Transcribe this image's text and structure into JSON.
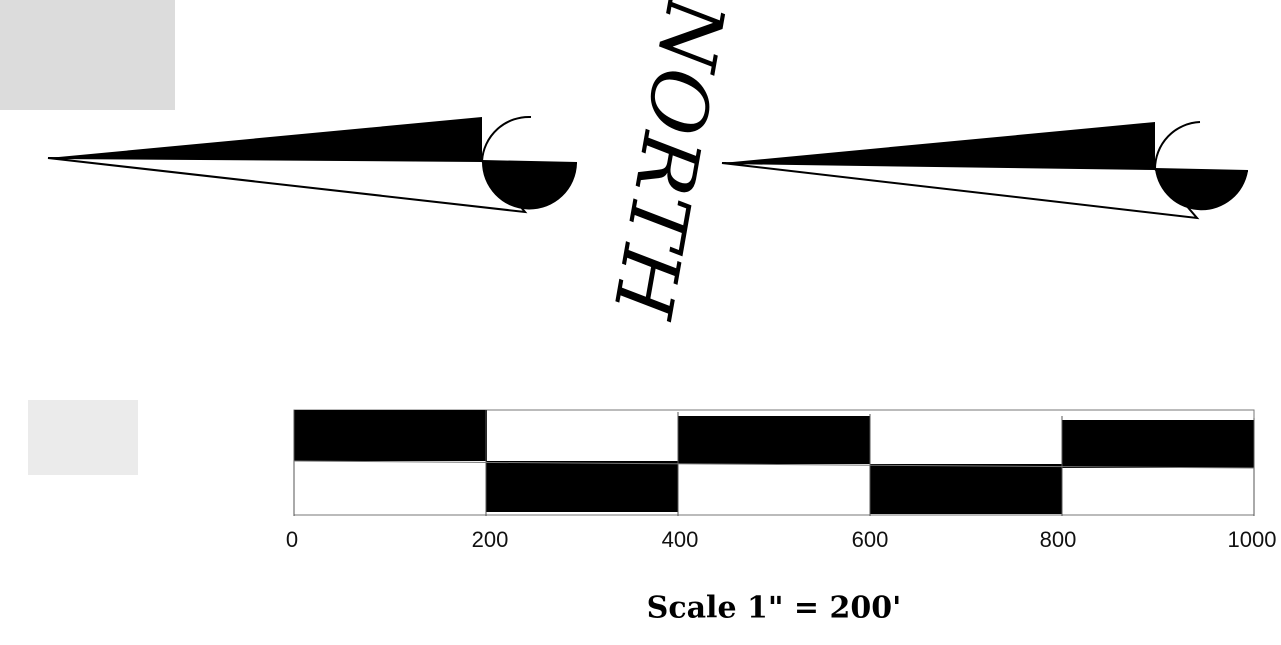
{
  "north_arrow": {
    "label": "NORTH"
  },
  "scale_bar": {
    "ticks": [
      "0",
      "200",
      "400",
      "600",
      "800",
      "1000"
    ],
    "scale_text": "Scale 1\" = 200'"
  },
  "colors": {
    "ink": "#000000",
    "paper": "#ffffff"
  }
}
